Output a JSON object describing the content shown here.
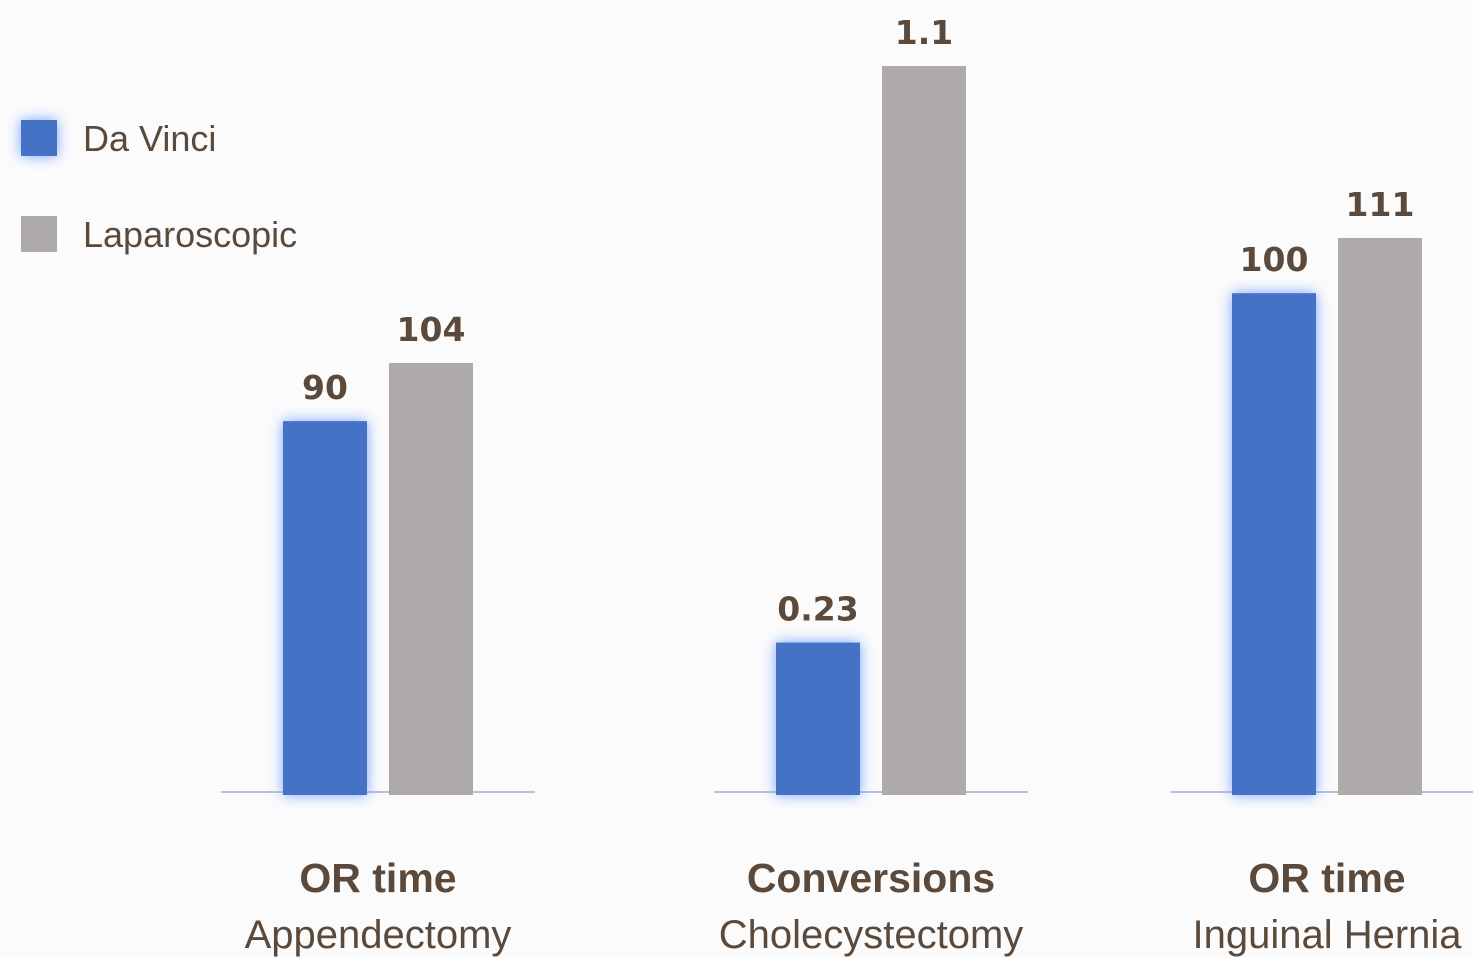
{
  "chart_data": {
    "type": "bar",
    "legend_position": "top-left",
    "grid": false,
    "series": [
      {
        "name": "Da Vinci",
        "color": "#4472c4",
        "glow": true
      },
      {
        "name": "Laparoscopic",
        "color": "#aeaaaa",
        "glow": false
      }
    ],
    "groups": [
      {
        "title": "OR time",
        "subtitle": "Appendectomy",
        "values": [
          90,
          104
        ],
        "labels": [
          "90",
          "104"
        ],
        "scale_max": 104
      },
      {
        "title": "Conversions",
        "subtitle": "Cholecystectomy",
        "values": [
          0.23,
          1.1
        ],
        "labels": [
          "0.23",
          "1.1"
        ],
        "scale_max": 1.1
      },
      {
        "title": "OR time",
        "subtitle": "Inguinal Hernia",
        "values": [
          100,
          111
        ],
        "labels": [
          "100",
          "111"
        ],
        "scale_max": 111
      }
    ]
  }
}
